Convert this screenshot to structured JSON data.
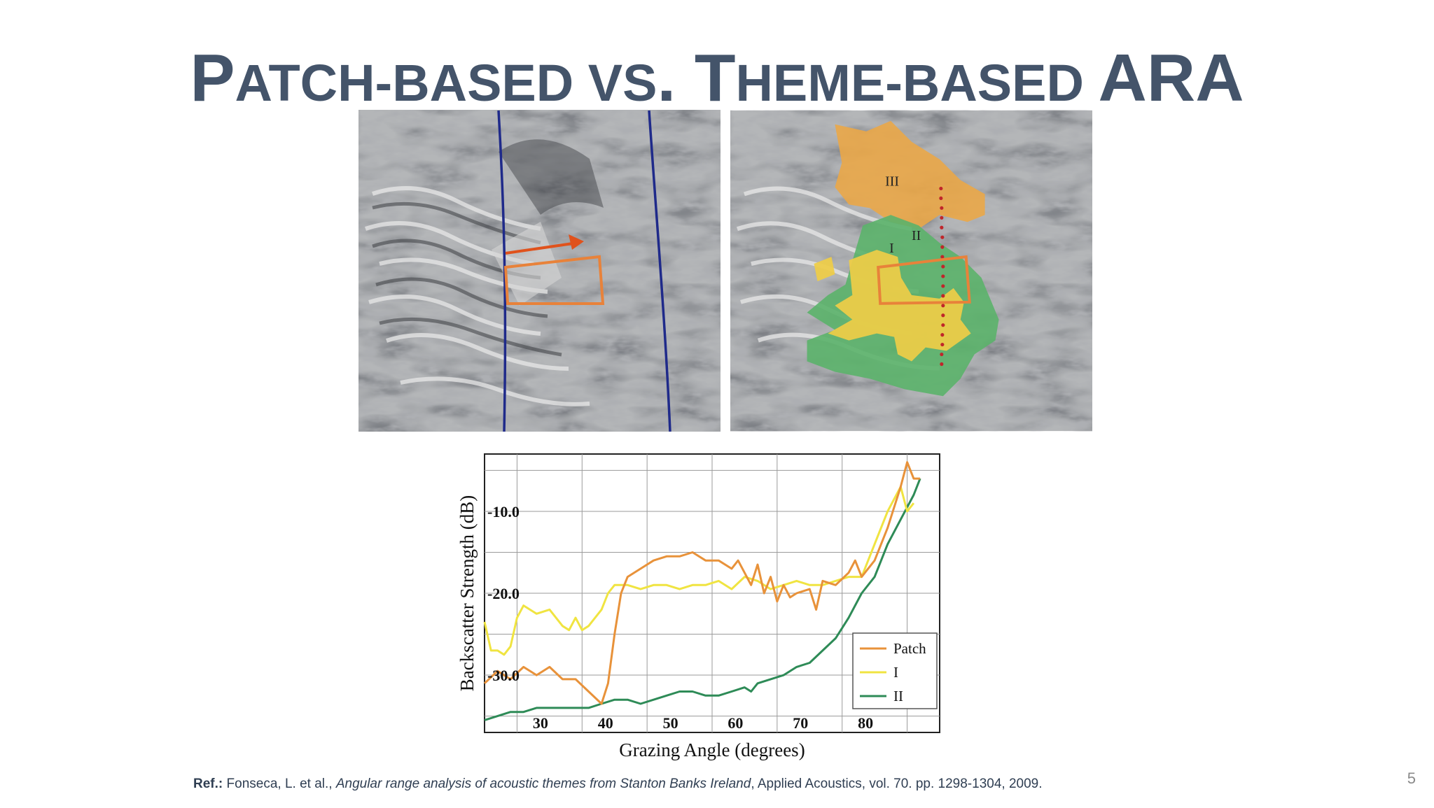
{
  "slide": {
    "title_parts": [
      "P",
      "ATCH-BASED VS",
      ". T",
      "HEME-BASED ",
      "ARA"
    ],
    "page_number": "5"
  },
  "images": {
    "left_panel": {
      "description_icon": "sonar-mosaic-patch-icon"
    },
    "right_panel": {
      "description_icon": "sonar-mosaic-themes-icon",
      "theme_labels": [
        "III",
        "II",
        "I"
      ]
    }
  },
  "reference": {
    "label": "Ref.:",
    "authors": "Fonseca, L. et al.,",
    "title": "Angular range analysis of acoustic themes from Stanton Banks Ireland",
    "source": ", Applied Acoustics, vol. 70. pp. 1298-1304, 2009."
  },
  "chart_data": {
    "type": "line",
    "xlabel": "Grazing Angle (degrees)",
    "ylabel": "Backscatter Strength (dB)",
    "xlim": [
      20,
      90
    ],
    "ylim": [
      -37,
      -3
    ],
    "x_ticks": [
      30,
      40,
      50,
      60,
      70,
      80
    ],
    "x_tick_labels": [
      "30",
      "40",
      "50",
      "60",
      "70",
      "80"
    ],
    "y_ticks": [
      -10,
      -20,
      -30
    ],
    "y_tick_labels": [
      "-10.0",
      "-20.0",
      "-30.0"
    ],
    "grid": true,
    "legend": {
      "position": "bottom-right",
      "entries": [
        "Patch",
        "I",
        "II"
      ]
    },
    "series": [
      {
        "name": "Patch",
        "color": "#e8923a",
        "x": [
          20,
          22,
          24,
          26,
          28,
          30,
          32,
          34,
          36,
          38,
          39,
          40,
          41,
          42,
          44,
          46,
          48,
          50,
          52,
          54,
          56,
          58,
          59,
          60,
          61,
          62,
          63,
          64,
          65,
          66,
          67,
          68,
          70,
          71,
          72,
          74,
          76,
          77,
          78,
          80,
          82,
          84,
          85,
          86,
          87
        ],
        "y": [
          -31,
          -29.5,
          -30.5,
          -29,
          -30,
          -29,
          -30.5,
          -30.5,
          -32,
          -33.5,
          -31,
          -25,
          -20,
          -18,
          -17,
          -16,
          -15.5,
          -15.5,
          -15,
          -16,
          -16,
          -17,
          -16,
          -17.5,
          -19,
          -16.5,
          -20,
          -18,
          -21,
          -19,
          -20.5,
          -20,
          -19.5,
          -22,
          -18.5,
          -19,
          -17.5,
          -16,
          -18,
          -16,
          -12,
          -7,
          -4,
          -6,
          -6
        ]
      },
      {
        "name": "I",
        "color": "#f0e441",
        "x": [
          20,
          21,
          22,
          23,
          24,
          25,
          26,
          28,
          30,
          32,
          33,
          34,
          35,
          36,
          38,
          39,
          40,
          42,
          44,
          46,
          48,
          50,
          52,
          54,
          56,
          58,
          60,
          62,
          64,
          66,
          68,
          70,
          72,
          74,
          76,
          78,
          80,
          82,
          84,
          85,
          86
        ],
        "y": [
          -23.5,
          -27,
          -27,
          -27.5,
          -26.5,
          -23,
          -21.5,
          -22.5,
          -22,
          -24,
          -24.5,
          -23,
          -24.5,
          -24,
          -22,
          -20,
          -19,
          -19,
          -19.5,
          -19,
          -19,
          -19.5,
          -19,
          -19,
          -18.5,
          -19.5,
          -18,
          -18.5,
          -19.5,
          -19,
          -18.5,
          -19,
          -19,
          -18.5,
          -18,
          -18,
          -14,
          -10,
          -7,
          -10,
          -9
        ]
      },
      {
        "name": "II",
        "color": "#2e8b57",
        "x": [
          20,
          22,
          24,
          26,
          28,
          30,
          32,
          34,
          36,
          38,
          40,
          42,
          44,
          46,
          48,
          50,
          52,
          54,
          56,
          58,
          60,
          61,
          62,
          64,
          66,
          68,
          70,
          72,
          74,
          76,
          78,
          80,
          82,
          84,
          86,
          87
        ],
        "y": [
          -35.5,
          -35,
          -34.5,
          -34.5,
          -34,
          -34,
          -34,
          -34,
          -34,
          -33.5,
          -33,
          -33,
          -33.5,
          -33,
          -32.5,
          -32,
          -32,
          -32.5,
          -32.5,
          -32,
          -31.5,
          -32,
          -31,
          -30.5,
          -30,
          -29,
          -28.5,
          -27,
          -25.5,
          -23,
          -20,
          -18,
          -14,
          -11,
          -8,
          -6
        ]
      }
    ]
  }
}
